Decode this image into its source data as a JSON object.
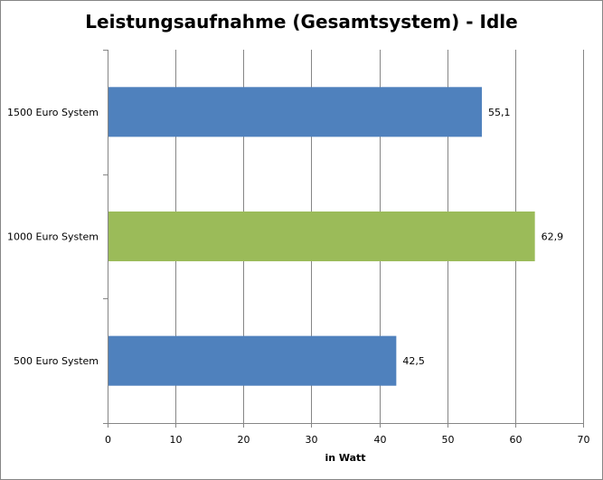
{
  "chart_data": {
    "type": "bar",
    "orientation": "horizontal",
    "title": "Leistungsaufnahme (Gesamtsystem) - Idle",
    "xlabel": "in Watt",
    "ylabel": "",
    "categories": [
      "1500 Euro System",
      "1000 Euro System",
      "500 Euro System"
    ],
    "values": [
      55.1,
      62.9,
      42.5
    ],
    "value_labels": [
      "55,1",
      "62,9",
      "42,5"
    ],
    "bar_colors": [
      "#4F81BD",
      "#9BBB59",
      "#4F81BD"
    ],
    "xlim": [
      0,
      70
    ],
    "x_ticks": [
      0,
      10,
      20,
      30,
      40,
      50,
      60,
      70
    ],
    "grid": "vertical",
    "legend": "none"
  }
}
